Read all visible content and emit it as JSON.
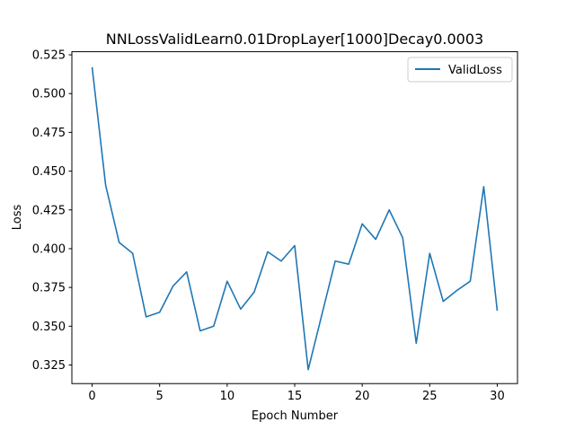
{
  "chart_data": {
    "type": "line",
    "title": "NNLossValidLearn0.01DropLayer[1000]Decay0.0003",
    "xlabel": "Epoch Number",
    "ylabel": "Loss",
    "xlim": [
      -1.5,
      31.5
    ],
    "ylim": [
      0.313,
      0.527
    ],
    "xticks": [
      0,
      5,
      10,
      15,
      20,
      25,
      30
    ],
    "yticks": [
      0.325,
      0.35,
      0.375,
      0.4,
      0.425,
      0.45,
      0.475,
      0.5,
      0.525
    ],
    "ytick_labels": [
      "0.325",
      "0.350",
      "0.375",
      "0.400",
      "0.425",
      "0.450",
      "0.475",
      "0.500",
      "0.525"
    ],
    "grid": false,
    "legend_position": "top-right",
    "series": [
      {
        "name": "ValidLoss",
        "color": "#1f77b4",
        "x": [
          0,
          1,
          2,
          3,
          4,
          5,
          6,
          7,
          8,
          9,
          10,
          11,
          12,
          13,
          14,
          15,
          16,
          17,
          18,
          19,
          20,
          21,
          22,
          23,
          24,
          25,
          26,
          27,
          28,
          29,
          30
        ],
        "y": [
          0.517,
          0.441,
          0.404,
          0.397,
          0.356,
          0.359,
          0.376,
          0.385,
          0.347,
          0.35,
          0.379,
          0.361,
          0.372,
          0.398,
          0.392,
          0.402,
          0.322,
          0.357,
          0.392,
          0.39,
          0.416,
          0.406,
          0.425,
          0.407,
          0.339,
          0.397,
          0.366,
          0.373,
          0.379,
          0.44,
          0.36
        ]
      }
    ]
  }
}
